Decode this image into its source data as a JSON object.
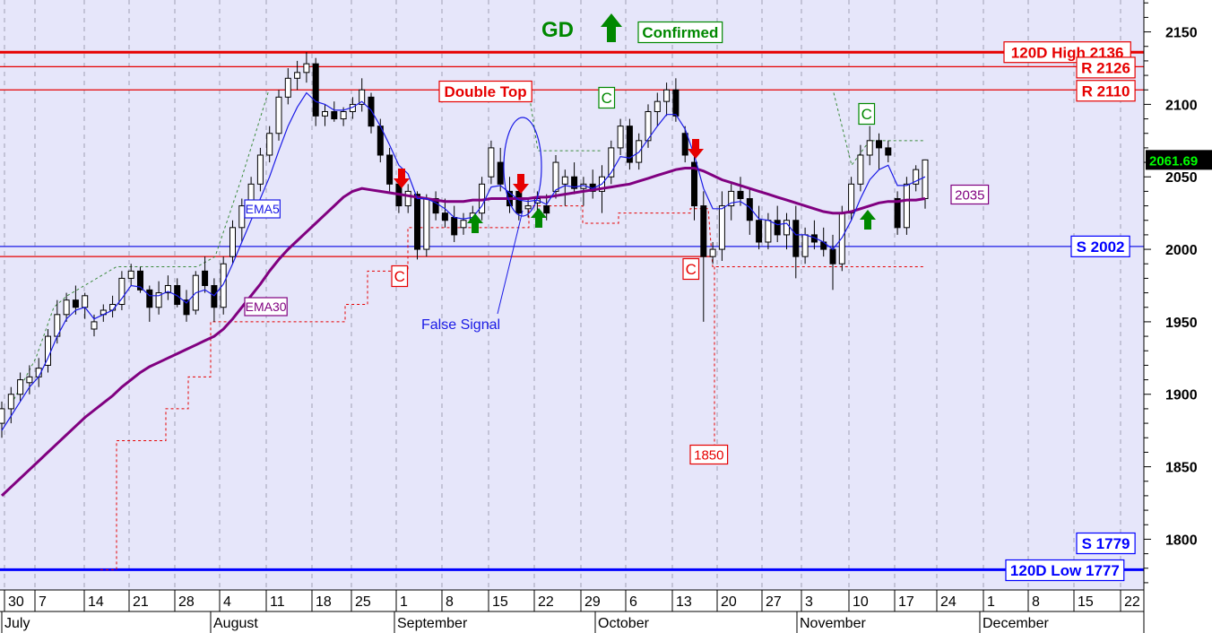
{
  "chart_data": {
    "type": "candlestick",
    "y_axis": {
      "min": 1765,
      "max": 2172,
      "ticks": [
        2150,
        2100,
        2050,
        2000,
        1950,
        1900,
        1850,
        1800
      ],
      "current_price_label": "2061.69",
      "current_price": 2061.69
    },
    "x_axis": {
      "day_labels": [
        "30",
        "7",
        "14",
        "21",
        "28",
        "4",
        "11",
        "18",
        "25",
        "1",
        "8",
        "15",
        "22",
        "29",
        "6",
        "13",
        "20",
        "27",
        "3",
        "10",
        "17",
        "24",
        "1",
        "8",
        "15",
        "22"
      ],
      "month_labels": [
        "July",
        "August",
        "September",
        "October",
        "November",
        "December"
      ]
    },
    "candles": [
      [
        1880,
        1895,
        1870,
        1890
      ],
      [
        1890,
        1905,
        1880,
        1900
      ],
      [
        1900,
        1915,
        1895,
        1910
      ],
      [
        1908,
        1920,
        1900,
        1912
      ],
      [
        1912,
        1925,
        1905,
        1918
      ],
      [
        1920,
        1945,
        1915,
        1940
      ],
      [
        1940,
        1965,
        1935,
        1955
      ],
      [
        1955,
        1970,
        1950,
        1965
      ],
      [
        1965,
        1975,
        1955,
        1960
      ],
      [
        1960,
        1970,
        1952,
        1968
      ],
      [
        1945,
        1955,
        1940,
        1950
      ],
      [
        1955,
        1962,
        1950,
        1958
      ],
      [
        1958,
        1968,
        1953,
        1962
      ],
      [
        1962,
        1985,
        1958,
        1980
      ],
      [
        1980,
        1990,
        1975,
        1985
      ],
      [
        1985,
        1988,
        1970,
        1972
      ],
      [
        1972,
        1975,
        1950,
        1960
      ],
      [
        1960,
        1978,
        1955,
        1970
      ],
      [
        1970,
        1982,
        1965,
        1975
      ],
      [
        1975,
        1980,
        1960,
        1962
      ],
      [
        1965,
        1972,
        1950,
        1955
      ],
      [
        1958,
        1985,
        1955,
        1982
      ],
      [
        1985,
        1995,
        1970,
        1975
      ],
      [
        1975,
        1980,
        1950,
        1960
      ],
      [
        1960,
        1995,
        1955,
        1990
      ],
      [
        1995,
        2020,
        1990,
        2015
      ],
      [
        2015,
        2035,
        2005,
        2030
      ],
      [
        2030,
        2050,
        2025,
        2045
      ],
      [
        2045,
        2070,
        2040,
        2065
      ],
      [
        2065,
        2085,
        2060,
        2080
      ],
      [
        2080,
        2110,
        2075,
        2105
      ],
      [
        2105,
        2125,
        2100,
        2118
      ],
      [
        2118,
        2130,
        2110,
        2122
      ],
      [
        2122,
        2136,
        2115,
        2128
      ],
      [
        2128,
        2132,
        2085,
        2092
      ],
      [
        2092,
        2100,
        2085,
        2095
      ],
      [
        2095,
        2102,
        2088,
        2090
      ],
      [
        2090,
        2098,
        2085,
        2095
      ],
      [
        2095,
        2105,
        2090,
        2100
      ],
      [
        2100,
        2118,
        2095,
        2110
      ],
      [
        2105,
        2108,
        2080,
        2085
      ],
      [
        2085,
        2090,
        2060,
        2065
      ],
      [
        2065,
        2070,
        2040,
        2045
      ],
      [
        2045,
        2055,
        2025,
        2030
      ],
      [
        2030,
        2045,
        2025,
        2040
      ],
      [
        2038,
        2040,
        1993,
        2000
      ],
      [
        2000,
        2038,
        1995,
        2035
      ],
      [
        2035,
        2040,
        2020,
        2025
      ],
      [
        2025,
        2035,
        2015,
        2020
      ],
      [
        2022,
        2030,
        2005,
        2010
      ],
      [
        2015,
        2025,
        2010,
        2020
      ],
      [
        2020,
        2030,
        2012,
        2025
      ],
      [
        2025,
        2050,
        2020,
        2045
      ],
      [
        2050,
        2075,
        2045,
        2070
      ],
      [
        2060,
        2070,
        2040,
        2045
      ],
      [
        2040,
        2050,
        2025,
        2030
      ],
      [
        2040,
        2048,
        2020,
        2025
      ],
      [
        2028,
        2035,
        2022,
        2030
      ],
      [
        2032,
        2040,
        2025,
        2035
      ],
      [
        2030,
        2038,
        2020,
        2025
      ],
      [
        2040,
        2065,
        2035,
        2060
      ],
      [
        2045,
        2055,
        2030,
        2050
      ],
      [
        2050,
        2060,
        2038,
        2042
      ],
      [
        2042,
        2050,
        2030,
        2045
      ],
      [
        2045,
        2055,
        2035,
        2040
      ],
      [
        2040,
        2058,
        2025,
        2050
      ],
      [
        2050,
        2075,
        2045,
        2070
      ],
      [
        2070,
        2090,
        2065,
        2085
      ],
      [
        2085,
        2090,
        2055,
        2060
      ],
      [
        2060,
        2080,
        2055,
        2075
      ],
      [
        2075,
        2100,
        2070,
        2095
      ],
      [
        2095,
        2108,
        2085,
        2102
      ],
      [
        2102,
        2115,
        2092,
        2110
      ],
      [
        2110,
        2118,
        2088,
        2092
      ],
      [
        2080,
        2085,
        2060,
        2065
      ],
      [
        2060,
        2065,
        2020,
        2030
      ],
      [
        2030,
        2040,
        1950,
        1995
      ],
      [
        1995,
        2005,
        1990,
        2000
      ],
      [
        2000,
        2040,
        1992,
        2030
      ],
      [
        2030,
        2045,
        2020,
        2040
      ],
      [
        2040,
        2050,
        2030,
        2035
      ],
      [
        2035,
        2042,
        2010,
        2020
      ],
      [
        2020,
        2030,
        2000,
        2005
      ],
      [
        2005,
        2025,
        2000,
        2020
      ],
      [
        2020,
        2030,
        2005,
        2010
      ],
      [
        2010,
        2025,
        2000,
        2020
      ],
      [
        2020,
        2030,
        1980,
        1995
      ],
      [
        1995,
        2015,
        1990,
        2010
      ],
      [
        2010,
        2020,
        2000,
        2005
      ],
      [
        2005,
        2015,
        1995,
        2000
      ],
      [
        2000,
        2010,
        1972,
        1990
      ],
      [
        1990,
        2030,
        1985,
        2025
      ],
      [
        2025,
        2050,
        2020,
        2045
      ],
      [
        2045,
        2072,
        2040,
        2065
      ],
      [
        2065,
        2085,
        2058,
        2075
      ],
      [
        2075,
        2080,
        2055,
        2070
      ],
      [
        2070,
        2075,
        2060,
        2065
      ],
      [
        2035,
        2040,
        2010,
        2015
      ],
      [
        2015,
        2050,
        2010,
        2045
      ],
      [
        2045,
        2058,
        2040,
        2055
      ],
      [
        2035,
        2062,
        2028,
        2061.69
      ]
    ],
    "ema5": [
      1875,
      1885,
      1895,
      1905,
      1912,
      1925,
      1940,
      1952,
      1958,
      1960,
      1952,
      1955,
      1958,
      1966,
      1975,
      1974,
      1968,
      1968,
      1971,
      1968,
      1963,
      1970,
      1972,
      1968,
      1976,
      1990,
      2005,
      2020,
      2035,
      2050,
      2068,
      2085,
      2098,
      2108,
      2102,
      2100,
      2096,
      2096,
      2098,
      2102,
      2096,
      2085,
      2072,
      2058,
      2052,
      2035,
      2035,
      2032,
      2028,
      2022,
      2021,
      2022,
      2030,
      2043,
      2044,
      2039,
      2034,
      2033,
      2034,
      2031,
      2041,
      2044,
      2043,
      2044,
      2042,
      2045,
      2053,
      2064,
      2063,
      2067,
      2076,
      2085,
      2093,
      2093,
      2083,
      2065,
      2042,
      2028,
      2028,
      2032,
      2033,
      2029,
      2021,
      2020,
      2017,
      2018,
      2010,
      2010,
      2008,
      2005,
      2000,
      2008,
      2020,
      2035,
      2048,
      2055,
      2058,
      2044,
      2044,
      2047,
      2050
    ],
    "ema30": [
      1830,
      1836,
      1842,
      1848,
      1854,
      1860,
      1866,
      1872,
      1878,
      1884,
      1889,
      1894,
      1899,
      1905,
      1910,
      1915,
      1919,
      1922,
      1925,
      1928,
      1931,
      1934,
      1937,
      1940,
      1945,
      1952,
      1960,
      1968,
      1976,
      1985,
      1993,
      2000,
      2006,
      2012,
      2018,
      2024,
      2030,
      2036,
      2040,
      2042,
      2041,
      2040,
      2039,
      2038,
      2037,
      2036,
      2035,
      2034,
      2033,
      2033,
      2033,
      2034,
      2034,
      2035,
      2035,
      2035,
      2035,
      2035,
      2036,
      2036,
      2037,
      2038,
      2039,
      2040,
      2041,
      2042,
      2043,
      2044,
      2045,
      2047,
      2049,
      2051,
      2053,
      2055,
      2056,
      2056,
      2054,
      2051,
      2048,
      2046,
      2044,
      2042,
      2040,
      2038,
      2036,
      2034,
      2032,
      2030,
      2028,
      2026,
      2025,
      2025,
      2026,
      2028,
      2030,
      2032,
      2033,
      2033,
      2034,
      2034,
      2035
    ],
    "ema5_label": "EMA5",
    "ema30_label": "EMA30",
    "ema30_value_label": "2035",
    "horizontal_lines": [
      {
        "label": "120D High 2136",
        "value": 2136,
        "color": "#e60000"
      },
      {
        "label": "R 2126",
        "value": 2126,
        "color": "#e60000"
      },
      {
        "label": "R 2110",
        "value": 2110,
        "color": "#e60000"
      },
      {
        "label": "S 2002",
        "value": 2002,
        "color": "#1a1ae6"
      },
      {
        "label": "S 1779",
        "value": 1779,
        "color": "#0000ff"
      },
      {
        "label": "120D Low 1777",
        "value": 1777,
        "color": "#0000ff"
      }
    ],
    "annotations": {
      "gd": "GD",
      "confirmed": "Confirmed",
      "double_top": "Double Top",
      "false_signal": "False Signal",
      "c": "C",
      "low_1850": "1850"
    },
    "colors": {
      "background": "#e6e6fa",
      "bull": "#ffffff",
      "bear": "#000000",
      "ema5": "#1a1ae6",
      "ema30": "#800080",
      "resistance": "#e60000",
      "support": "#0000ff",
      "signal_up": "#008800",
      "signal_down": "#e60000"
    }
  }
}
